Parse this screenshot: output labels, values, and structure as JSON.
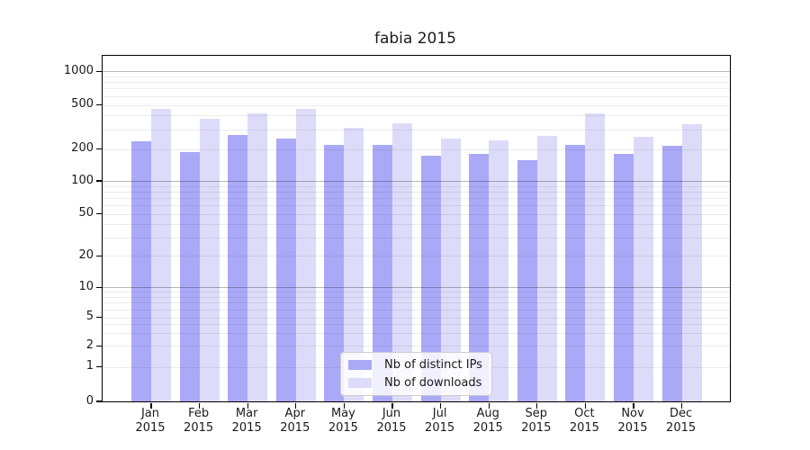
{
  "chart_data": {
    "type": "bar",
    "title": "fabia 2015",
    "xlabel": "",
    "ylabel": "",
    "y_scale": "symlog",
    "y_ticks": [
      0,
      1,
      2,
      5,
      10,
      20,
      50,
      100,
      200,
      500,
      1000
    ],
    "ylim": [
      0,
      1380
    ],
    "grid": true,
    "legend_position": "bottom-center",
    "categories": [
      {
        "month": "Jan",
        "year": "2015"
      },
      {
        "month": "Feb",
        "year": "2015"
      },
      {
        "month": "Mar",
        "year": "2015"
      },
      {
        "month": "Apr",
        "year": "2015"
      },
      {
        "month": "May",
        "year": "2015"
      },
      {
        "month": "Jun",
        "year": "2015"
      },
      {
        "month": "Jul",
        "year": "2015"
      },
      {
        "month": "Aug",
        "year": "2015"
      },
      {
        "month": "Sep",
        "year": "2015"
      },
      {
        "month": "Oct",
        "year": "2015"
      },
      {
        "month": "Nov",
        "year": "2015"
      },
      {
        "month": "Dec",
        "year": "2015"
      }
    ],
    "series": [
      {
        "name": "Nb of distinct IPs",
        "color": "#a9a9f7",
        "values": [
          235,
          188,
          266,
          249,
          219,
          219,
          172,
          179,
          156,
          218,
          181,
          213
        ]
      },
      {
        "name": "Nb of downloads",
        "color": "#dcdcfa",
        "values": [
          462,
          374,
          420,
          462,
          311,
          340,
          250,
          240,
          262,
          420,
          258,
          337
        ]
      }
    ]
  },
  "colors": {
    "axis": "#000000",
    "text": "#1a1a1a",
    "grid_major": "#b3b3b3",
    "grid_minor": "#ececec",
    "legend_border": "#cccccc"
  }
}
